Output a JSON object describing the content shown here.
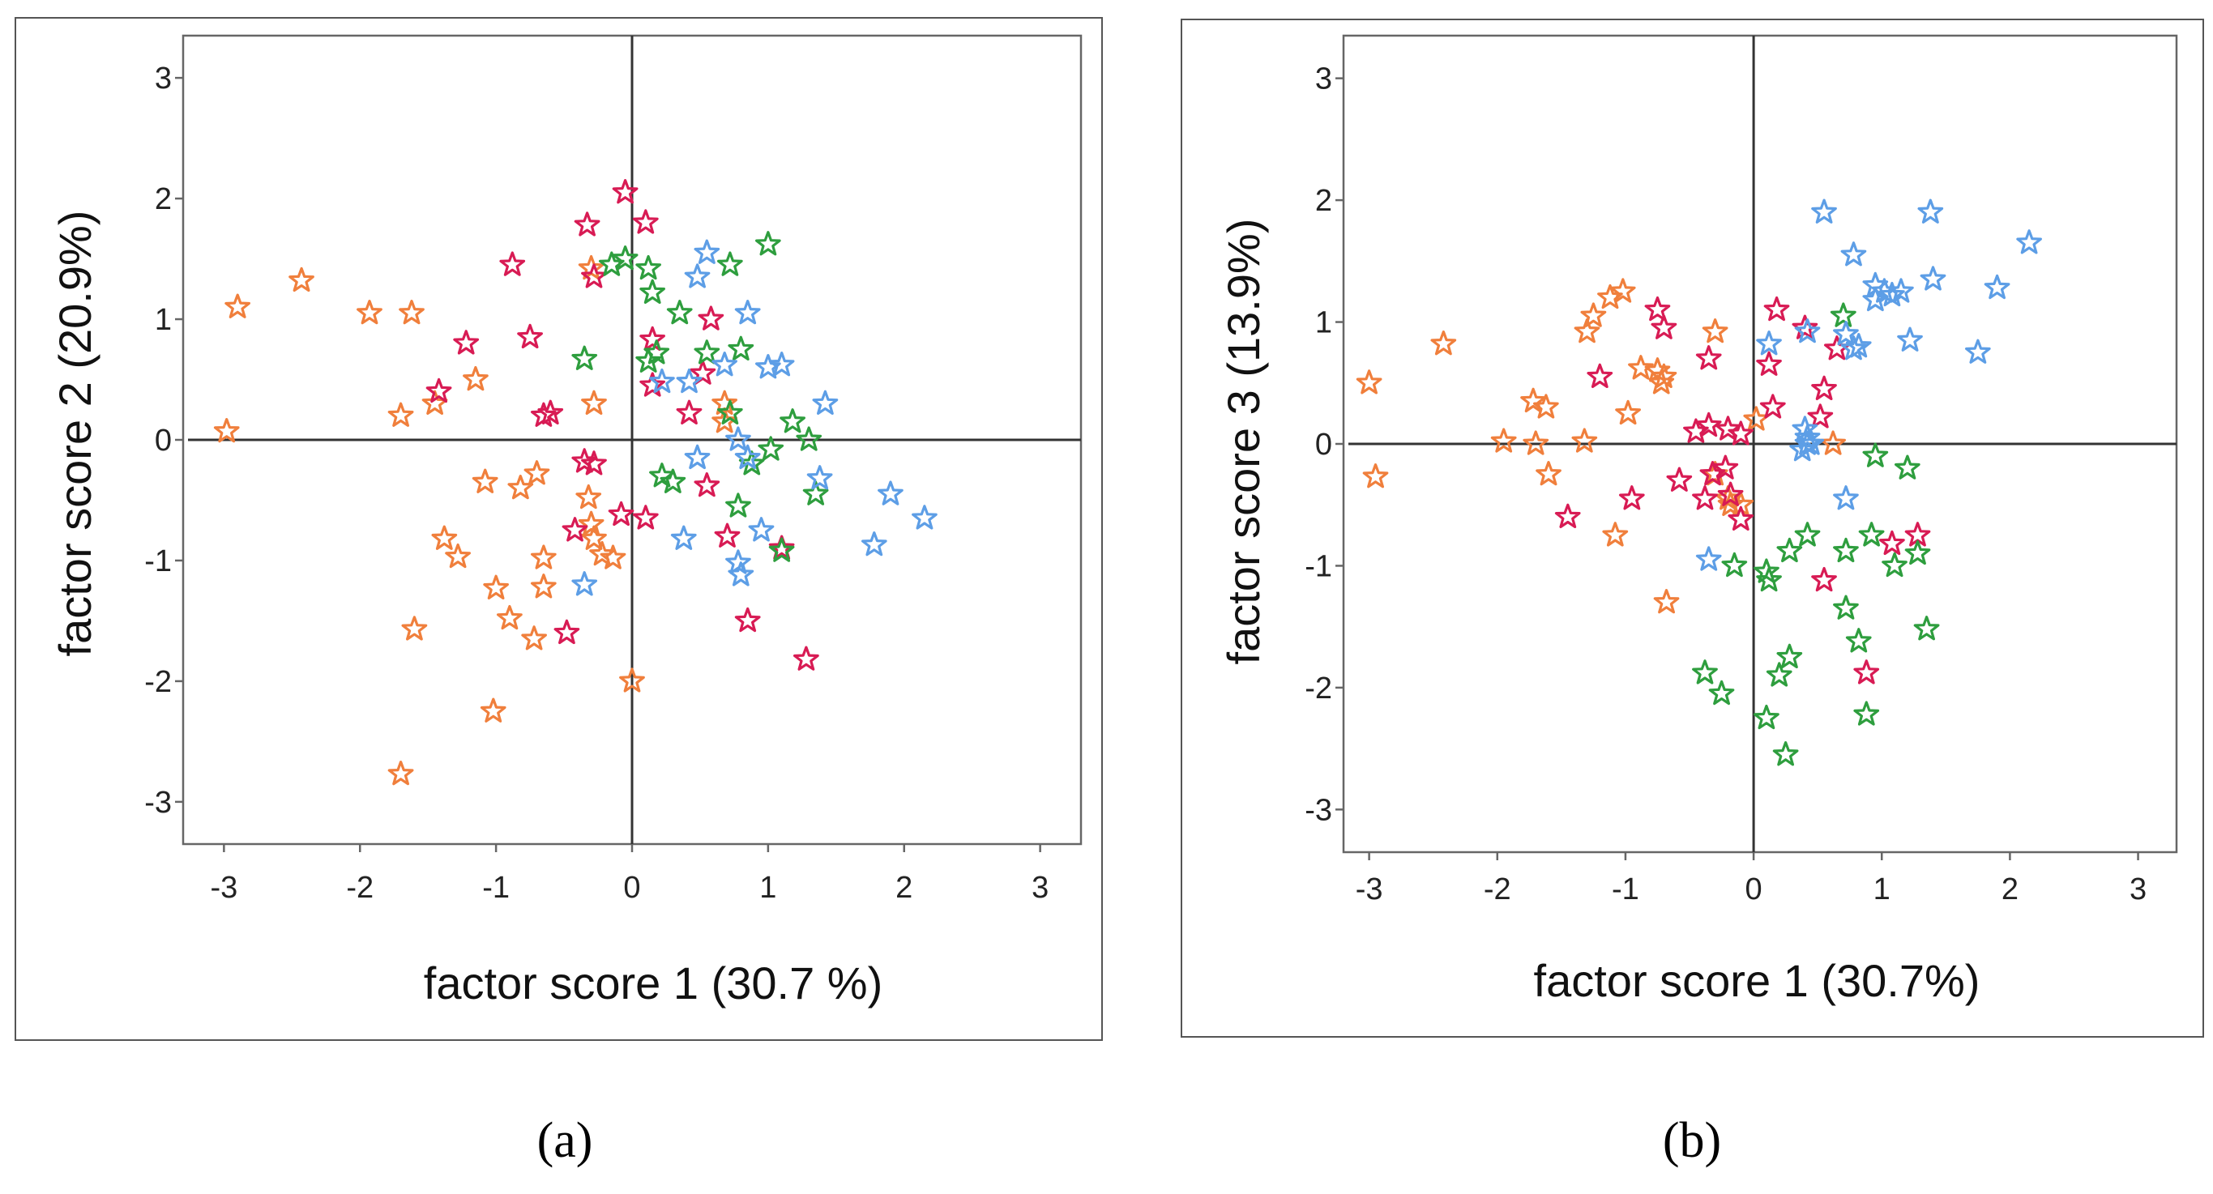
{
  "palette": {
    "orange": "#f07f3c",
    "red": "#d81b54",
    "green": "#2e9e3e",
    "blue": "#5d9ee6"
  },
  "chart_data": [
    {
      "type": "scatter",
      "panel_label": "(a)",
      "xlabel": "factor score 1 (30.7 %)",
      "ylabel": "factor score 2 (20.9%)",
      "xlim": [
        -3.3,
        3.3
      ],
      "ylim": [
        -3.35,
        3.35
      ],
      "xticks": [
        "-3",
        "-2",
        "-1",
        "0",
        "1",
        "2",
        "3"
      ],
      "yticks": [
        "3",
        "2",
        "1",
        "0",
        "-1",
        "-2",
        "-3"
      ],
      "marker": "star-icon",
      "series": [
        {
          "name": "orange",
          "color": "orange",
          "points": [
            [
              -2.98,
              0.07
            ],
            [
              -2.9,
              1.1
            ],
            [
              -2.43,
              1.32
            ],
            [
              -1.93,
              1.05
            ],
            [
              -1.62,
              1.05
            ],
            [
              -1.7,
              0.2
            ],
            [
              -1.45,
              0.3
            ],
            [
              -1.15,
              0.5
            ],
            [
              -1.08,
              -0.35
            ],
            [
              -1.38,
              -0.82
            ],
            [
              -1.28,
              -0.97
            ],
            [
              -0.82,
              -0.4
            ],
            [
              -0.7,
              -0.28
            ],
            [
              -0.65,
              -0.98
            ],
            [
              -1.0,
              -1.23
            ],
            [
              -0.9,
              -1.48
            ],
            [
              -0.65,
              -1.22
            ],
            [
              -0.72,
              -1.65
            ],
            [
              -1.6,
              -1.57
            ],
            [
              -1.02,
              -2.25
            ],
            [
              -1.7,
              -2.77
            ],
            [
              -0.32,
              -0.48
            ],
            [
              -0.3,
              -0.7
            ],
            [
              -0.28,
              -0.82
            ],
            [
              -0.22,
              -0.95
            ],
            [
              -0.14,
              -0.98
            ],
            [
              -0.28,
              0.3
            ],
            [
              -0.3,
              1.42
            ],
            [
              0.0,
              -2.0
            ],
            [
              0.68,
              0.3
            ],
            [
              0.68,
              0.15
            ]
          ]
        },
        {
          "name": "red",
          "color": "red",
          "points": [
            [
              -0.05,
              2.05
            ],
            [
              0.1,
              1.8
            ],
            [
              -0.33,
              1.78
            ],
            [
              -0.88,
              1.45
            ],
            [
              -0.28,
              1.35
            ],
            [
              -0.75,
              0.85
            ],
            [
              -1.22,
              0.8
            ],
            [
              -1.42,
              0.4
            ],
            [
              -0.65,
              0.2
            ],
            [
              -0.6,
              0.22
            ],
            [
              -0.35,
              -0.18
            ],
            [
              -0.28,
              -0.2
            ],
            [
              0.15,
              0.83
            ],
            [
              0.15,
              0.45
            ],
            [
              0.42,
              0.22
            ],
            [
              0.58,
              1.0
            ],
            [
              0.52,
              0.55
            ],
            [
              -0.42,
              -0.75
            ],
            [
              -0.48,
              -1.6
            ],
            [
              0.1,
              -0.65
            ],
            [
              -0.08,
              -0.62
            ],
            [
              0.55,
              -0.38
            ],
            [
              0.7,
              -0.8
            ],
            [
              1.1,
              -0.9
            ],
            [
              0.85,
              -1.5
            ],
            [
              1.28,
              -1.82
            ]
          ]
        },
        {
          "name": "green",
          "color": "green",
          "points": [
            [
              -0.05,
              1.5
            ],
            [
              -0.15,
              1.45
            ],
            [
              0.12,
              1.42
            ],
            [
              0.15,
              1.22
            ],
            [
              0.35,
              1.05
            ],
            [
              0.72,
              1.45
            ],
            [
              1.0,
              1.62
            ],
            [
              0.12,
              0.65
            ],
            [
              0.18,
              0.72
            ],
            [
              0.55,
              0.72
            ],
            [
              0.8,
              0.75
            ],
            [
              -0.35,
              0.67
            ],
            [
              0.72,
              0.22
            ],
            [
              1.18,
              0.15
            ],
            [
              1.3,
              0.0
            ],
            [
              1.02,
              -0.08
            ],
            [
              0.88,
              -0.2
            ],
            [
              0.22,
              -0.3
            ],
            [
              0.3,
              -0.35
            ],
            [
              1.35,
              -0.45
            ],
            [
              0.78,
              -0.55
            ],
            [
              1.1,
              -0.92
            ]
          ]
        },
        {
          "name": "blue",
          "color": "blue",
          "points": [
            [
              0.55,
              1.55
            ],
            [
              0.48,
              1.35
            ],
            [
              0.85,
              1.05
            ],
            [
              0.68,
              0.62
            ],
            [
              0.42,
              0.48
            ],
            [
              0.22,
              0.48
            ],
            [
              1.0,
              0.6
            ],
            [
              1.1,
              0.62
            ],
            [
              1.42,
              0.3
            ],
            [
              0.78,
              0.0
            ],
            [
              0.48,
              -0.15
            ],
            [
              0.85,
              -0.15
            ],
            [
              1.38,
              -0.32
            ],
            [
              1.9,
              -0.45
            ],
            [
              2.15,
              -0.65
            ],
            [
              1.78,
              -0.87
            ],
            [
              0.38,
              -0.82
            ],
            [
              0.95,
              -0.75
            ],
            [
              0.78,
              -1.02
            ],
            [
              0.8,
              -1.12
            ],
            [
              -0.35,
              -1.2
            ]
          ]
        }
      ]
    },
    {
      "type": "scatter",
      "panel_label": "(b)",
      "xlabel": "factor score 1 (30.7%)",
      "ylabel": "factor score 3 (13.9%)",
      "xlim": [
        -3.2,
        3.3
      ],
      "ylim": [
        -3.35,
        3.35
      ],
      "xticks": [
        "-3",
        "-2",
        "-1",
        "0",
        "1",
        "2",
        "3"
      ],
      "yticks": [
        "3",
        "2",
        "1",
        "0",
        "-1",
        "-2",
        "-3"
      ],
      "marker": "star-icon",
      "series": [
        {
          "name": "orange",
          "color": "orange",
          "points": [
            [
              -3.0,
              0.5
            ],
            [
              -2.95,
              -0.27
            ],
            [
              -2.42,
              0.82
            ],
            [
              -1.95,
              0.02
            ],
            [
              -1.72,
              0.35
            ],
            [
              -1.62,
              0.3
            ],
            [
              -1.7,
              0.0
            ],
            [
              -1.6,
              -0.25
            ],
            [
              -1.32,
              0.02
            ],
            [
              -1.3,
              0.92
            ],
            [
              -1.25,
              1.05
            ],
            [
              -1.12,
              1.2
            ],
            [
              -1.02,
              1.25
            ],
            [
              -0.98,
              0.25
            ],
            [
              -0.88,
              0.62
            ],
            [
              -0.75,
              0.6
            ],
            [
              -0.72,
              0.5
            ],
            [
              -0.7,
              0.55
            ],
            [
              -1.08,
              -0.75
            ],
            [
              -0.68,
              -1.3
            ],
            [
              -0.3,
              0.92
            ],
            [
              -0.3,
              -0.25
            ],
            [
              -0.2,
              -0.45
            ],
            [
              -0.18,
              -0.5
            ],
            [
              -0.1,
              -0.5
            ],
            [
              0.02,
              0.2
            ],
            [
              0.62,
              0.0
            ]
          ]
        },
        {
          "name": "red",
          "color": "red",
          "points": [
            [
              -0.75,
              1.1
            ],
            [
              -0.7,
              0.95
            ],
            [
              0.18,
              1.1
            ],
            [
              0.4,
              0.95
            ],
            [
              -0.35,
              0.7
            ],
            [
              0.12,
              0.65
            ],
            [
              0.55,
              0.45
            ],
            [
              0.65,
              0.78
            ],
            [
              -1.2,
              0.55
            ],
            [
              -0.45,
              0.1
            ],
            [
              -0.35,
              0.15
            ],
            [
              -0.2,
              0.12
            ],
            [
              -0.1,
              0.08
            ],
            [
              0.15,
              0.3
            ],
            [
              0.52,
              0.22
            ],
            [
              -1.45,
              -0.6
            ],
            [
              -0.95,
              -0.45
            ],
            [
              -0.58,
              -0.3
            ],
            [
              -0.38,
              -0.45
            ],
            [
              -0.32,
              -0.25
            ],
            [
              -0.22,
              -0.2
            ],
            [
              -0.18,
              -0.42
            ],
            [
              -0.1,
              -0.62
            ],
            [
              0.55,
              -1.12
            ],
            [
              1.08,
              -0.82
            ],
            [
              1.28,
              -0.75
            ],
            [
              0.88,
              -1.88
            ]
          ]
        },
        {
          "name": "green",
          "color": "green",
          "points": [
            [
              0.7,
              1.05
            ],
            [
              0.95,
              -0.1
            ],
            [
              1.2,
              -0.2
            ],
            [
              0.42,
              -0.75
            ],
            [
              0.28,
              -0.88
            ],
            [
              0.72,
              -0.88
            ],
            [
              0.92,
              -0.75
            ],
            [
              1.1,
              -1.0
            ],
            [
              1.28,
              -0.9
            ],
            [
              -0.15,
              -1.0
            ],
            [
              0.1,
              -1.05
            ],
            [
              0.12,
              -1.12
            ],
            [
              0.72,
              -1.35
            ],
            [
              1.35,
              -1.52
            ],
            [
              0.82,
              -1.62
            ],
            [
              0.28,
              -1.75
            ],
            [
              0.2,
              -1.9
            ],
            [
              -0.38,
              -1.88
            ],
            [
              -0.25,
              -2.05
            ],
            [
              0.1,
              -2.25
            ],
            [
              0.88,
              -2.22
            ],
            [
              0.25,
              -2.55
            ]
          ]
        },
        {
          "name": "blue",
          "color": "blue",
          "points": [
            [
              0.55,
              1.9
            ],
            [
              1.38,
              1.9
            ],
            [
              2.15,
              1.65
            ],
            [
              0.78,
              1.55
            ],
            [
              1.4,
              1.35
            ],
            [
              1.9,
              1.28
            ],
            [
              0.95,
              1.3
            ],
            [
              1.08,
              1.22
            ],
            [
              1.02,
              1.25
            ],
            [
              1.15,
              1.25
            ],
            [
              0.95,
              1.18
            ],
            [
              1.22,
              0.85
            ],
            [
              1.75,
              0.75
            ],
            [
              0.72,
              0.9
            ],
            [
              0.78,
              0.78
            ],
            [
              0.82,
              0.8
            ],
            [
              0.12,
              0.82
            ],
            [
              0.42,
              0.92
            ],
            [
              0.4,
              0.12
            ],
            [
              0.42,
              0.05
            ],
            [
              0.42,
              0.0
            ],
            [
              0.38,
              -0.05
            ],
            [
              0.45,
              0.0
            ],
            [
              0.72,
              -0.45
            ],
            [
              -0.35,
              -0.95
            ]
          ]
        }
      ]
    }
  ]
}
